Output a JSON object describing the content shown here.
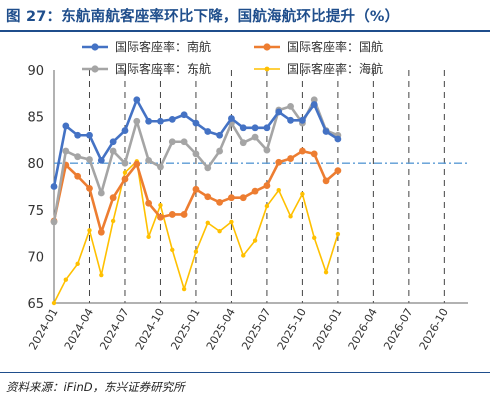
{
  "title": "图 27：东航南航客座率环比下降，国航海航环比提升（%）",
  "source": "资料来源：iFinD，东兴证券研究所",
  "chart_data": {
    "type": "line",
    "ylim": [
      65,
      90
    ],
    "yticks": [
      65,
      70,
      75,
      80,
      85,
      90
    ],
    "x_start": "2024-01",
    "x_end": "2026-12",
    "xticks": [
      "2024-01",
      "2024-04",
      "2024-07",
      "2024-10",
      "2025-01",
      "2025-04",
      "2025-07",
      "2025-10",
      "2026-01",
      "2026-04",
      "2026-07",
      "2026-10"
    ],
    "grid": "vertical dashed",
    "legend_position": "top",
    "reference_line": {
      "value": 80,
      "style": "dash-dot",
      "color": "#5b9bd5"
    },
    "series": [
      {
        "name": "国际客座率：南航",
        "color": "#4472c4",
        "marker": "circle",
        "values": [
          77.5,
          84.0,
          83.0,
          83.0,
          80.3,
          82.3,
          83.5,
          86.8,
          84.5,
          84.5,
          84.7,
          85.2,
          84.3,
          83.4,
          83.0,
          84.8,
          83.8,
          83.8,
          83.8,
          85.5,
          84.6,
          84.6,
          86.3,
          83.4,
          82.6
        ]
      },
      {
        "name": "国际客座率：国航",
        "color": "#ed7d31",
        "marker": "circle",
        "values": [
          73.8,
          79.8,
          78.6,
          77.3,
          72.6,
          76.3,
          78.3,
          79.9,
          75.7,
          74.2,
          74.5,
          74.5,
          77.2,
          76.4,
          75.8,
          76.3,
          76.3,
          77.0,
          77.6,
          80.1,
          80.5,
          81.3,
          81.0,
          78.1,
          79.2
        ]
      },
      {
        "name": "国际客座率：东航",
        "color": "#a5a5a5",
        "marker": "circle",
        "values": [
          73.7,
          81.3,
          80.7,
          80.4,
          76.8,
          81.3,
          80.0,
          84.5,
          80.3,
          79.6,
          82.3,
          82.3,
          81.0,
          79.5,
          81.3,
          84.3,
          82.2,
          82.8,
          81.4,
          85.7,
          86.1,
          84.3,
          86.8,
          83.5,
          83.0
        ]
      },
      {
        "name": "国际客座率：海航",
        "color": "#ffc000",
        "marker": "circle",
        "values": [
          65.0,
          67.5,
          69.2,
          72.8,
          68.0,
          73.8,
          79.0,
          80.2,
          72.1,
          75.5,
          70.7,
          66.5,
          70.5,
          73.6,
          72.7,
          73.7,
          70.1,
          71.7,
          75.4,
          77.1,
          74.3,
          76.7,
          72.0,
          68.3,
          72.4
        ]
      }
    ]
  }
}
